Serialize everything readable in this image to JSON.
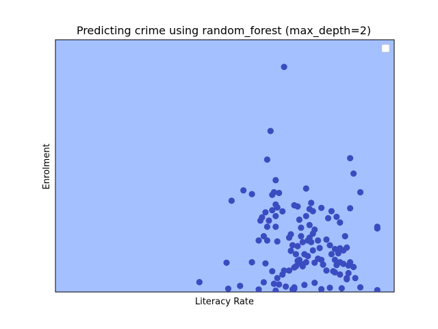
{
  "chart_data": {
    "type": "scatter",
    "title": "Predicting crime using random_forest (max_depth=2)",
    "xlabel": "Literacy Rate",
    "ylabel": "Enrolment",
    "xlim": [
      0,
      100
    ],
    "ylim": [
      0,
      100
    ],
    "grid": false,
    "legend": {
      "placement": "top-right",
      "entries": []
    },
    "colors": {
      "background": "#a4c0ff",
      "point": "#3b4cc0"
    },
    "points": [
      [
        67.5,
        94.6
      ],
      [
        63.5,
        67.5
      ],
      [
        62.5,
        55.4
      ],
      [
        65.0,
        46.7
      ],
      [
        55.5,
        42.4
      ],
      [
        52.0,
        38.0
      ],
      [
        58.0,
        40.8
      ],
      [
        64.5,
        41.6
      ],
      [
        66.0,
        41.3
      ],
      [
        64.0,
        40.5
      ],
      [
        74.0,
        43.2
      ],
      [
        87.0,
        56.0
      ],
      [
        88.0,
        49.5
      ],
      [
        90.0,
        41.6
      ],
      [
        65.0,
        36.4
      ],
      [
        65.5,
        35.2
      ],
      [
        62.0,
        33.1
      ],
      [
        64.0,
        34.0
      ],
      [
        65.0,
        31.5
      ],
      [
        60.5,
        29.6
      ],
      [
        63.0,
        29.6
      ],
      [
        65.0,
        27.0
      ],
      [
        62.5,
        27.0
      ],
      [
        61.5,
        23.0
      ],
      [
        60.0,
        21.2
      ],
      [
        62.5,
        21.2
      ],
      [
        65.5,
        20.8
      ],
      [
        71.5,
        35.6
      ],
      [
        75.0,
        34.5
      ],
      [
        74.0,
        31.5
      ],
      [
        76.0,
        33.6
      ],
      [
        78.5,
        35.0
      ],
      [
        81.5,
        33.6
      ],
      [
        83.0,
        31.2
      ],
      [
        84.0,
        28.8
      ],
      [
        87.0,
        34.8
      ],
      [
        72.5,
        26.6
      ],
      [
        75.0,
        27.7
      ],
      [
        76.5,
        25.8
      ],
      [
        76.0,
        24.1
      ],
      [
        75.0,
        22.4
      ],
      [
        74.5,
        21.2
      ],
      [
        73.0,
        20.5
      ],
      [
        72.5,
        23.0
      ],
      [
        69.0,
        22.4
      ],
      [
        70.0,
        19.2
      ],
      [
        71.5,
        18.8
      ],
      [
        69.5,
        16.8
      ],
      [
        71.0,
        15.4
      ],
      [
        73.5,
        15.4
      ],
      [
        72.0,
        13.0
      ],
      [
        75.5,
        20.5
      ],
      [
        77.5,
        21.2
      ],
      [
        76.0,
        17.0
      ],
      [
        74.5,
        14.6
      ],
      [
        78.0,
        18.0
      ],
      [
        76.5,
        11.8
      ],
      [
        73.0,
        10.3
      ],
      [
        70.5,
        9.8
      ],
      [
        71.0,
        10.3
      ],
      [
        71.5,
        12.6
      ],
      [
        72.5,
        11.3
      ],
      [
        74.0,
        12.0
      ],
      [
        78.5,
        13.0
      ],
      [
        81.0,
        19.2
      ],
      [
        81.5,
        15.4
      ],
      [
        82.5,
        17.6
      ],
      [
        84.0,
        17.9
      ],
      [
        86.0,
        18.2
      ],
      [
        85.0,
        17.0
      ],
      [
        83.5,
        15.8
      ],
      [
        82.5,
        13.0
      ],
      [
        84.0,
        12.0
      ],
      [
        85.0,
        11.3
      ],
      [
        86.5,
        10.6
      ],
      [
        87.0,
        12.0
      ],
      [
        88.0,
        10.0
      ],
      [
        83.0,
        10.8
      ],
      [
        82.0,
        8.2
      ],
      [
        79.0,
        11.0
      ],
      [
        80.0,
        8.5
      ],
      [
        82.5,
        7.7
      ],
      [
        84.0,
        6.8
      ],
      [
        86.0,
        5.3
      ],
      [
        88.5,
        5.3
      ],
      [
        76.5,
        3.3
      ],
      [
        73.5,
        2.4
      ],
      [
        70.5,
        1.4
      ],
      [
        68.0,
        1.7
      ],
      [
        66.0,
        2.6
      ],
      [
        64.5,
        2.9
      ],
      [
        61.5,
        3.5
      ],
      [
        65.5,
        5.3
      ],
      [
        67.0,
        6.8
      ],
      [
        64.0,
        8.2
      ],
      [
        67.5,
        8.5
      ],
      [
        69.0,
        8.5
      ],
      [
        58.0,
        12.0
      ],
      [
        62.0,
        11.5
      ],
      [
        54.5,
        2.0
      ],
      [
        50.5,
        11.8
      ],
      [
        42.5,
        3.6
      ],
      [
        51.0,
        0.8
      ],
      [
        65.0,
        0.0
      ],
      [
        70.0,
        0.5
      ],
      [
        70.5,
        0.8
      ],
      [
        84.5,
        1.0
      ],
      [
        90.0,
        1.4
      ],
      [
        95.0,
        0.2
      ],
      [
        60.0,
        0.5
      ],
      [
        95.0,
        26.3
      ],
      [
        95.0,
        27.0
      ],
      [
        80.5,
        30.6
      ],
      [
        78.5,
        0.6
      ],
      [
        70.5,
        36.1
      ],
      [
        86.0,
        4.8
      ],
      [
        86.5,
        7.4
      ],
      [
        81.0,
        1.2
      ],
      [
        72.0,
        30.0
      ],
      [
        67.0,
        33.5
      ],
      [
        69.5,
        23.8
      ],
      [
        61.0,
        31.0
      ],
      [
        75.5,
        37.1
      ],
      [
        77.5,
        13.5
      ],
      [
        85.5,
        23.0
      ],
      [
        80.0,
        21.6
      ]
    ]
  }
}
